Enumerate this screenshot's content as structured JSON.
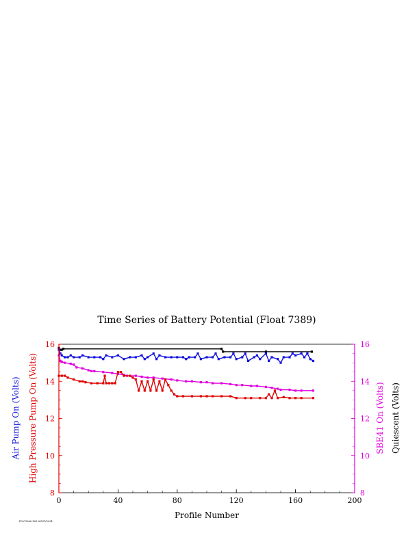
{
  "chart_data": {
    "type": "line",
    "title": "Time Series of Battery Potential (Float 7389)",
    "xlabel": "Profile Number",
    "xlim": [
      0,
      200
    ],
    "xticks": [
      0,
      40,
      80,
      120,
      160,
      200
    ],
    "ylim": [
      8,
      16
    ],
    "yticks": [
      8,
      10,
      12,
      14,
      16
    ],
    "left_axis_labels": [
      {
        "text": "Air Pump On (Volts)",
        "color": "#1010e0"
      },
      {
        "text": "High Pressure Pump On (Volts)",
        "color": "#e00000"
      }
    ],
    "right_axis_labels": [
      {
        "text": "SBE41 On (Volts)",
        "color": "#e000e0"
      },
      {
        "text": "Quiescent (Volts)",
        "color": "#000000"
      }
    ],
    "left_axis_color": "#e00000",
    "right_axis_color": "#e000e0",
    "footer_text": "F0073896.164 26NOV2024",
    "series": [
      {
        "name": "Quiescent",
        "color": "#000000",
        "x": [
          0,
          1,
          2,
          3,
          110,
          111,
          140,
          171
        ],
        "y": [
          15.8,
          15.7,
          15.7,
          15.75,
          15.75,
          15.6,
          15.6,
          15.6
        ]
      },
      {
        "name": "Air Pump On",
        "color": "#1010e0",
        "x": [
          0,
          1,
          2,
          4,
          6,
          8,
          10,
          14,
          16,
          20,
          24,
          28,
          30,
          32,
          36,
          40,
          44,
          48,
          52,
          56,
          58,
          60,
          64,
          66,
          68,
          72,
          76,
          80,
          84,
          86,
          88,
          92,
          94,
          96,
          100,
          104,
          106,
          108,
          112,
          116,
          118,
          120,
          124,
          126,
          128,
          132,
          134,
          136,
          140,
          142,
          144,
          148,
          150,
          152,
          156,
          158,
          160,
          164,
          166,
          168,
          170,
          172
        ],
        "y": [
          15.7,
          15.5,
          15.4,
          15.3,
          15.3,
          15.4,
          15.3,
          15.3,
          15.4,
          15.3,
          15.3,
          15.3,
          15.2,
          15.4,
          15.3,
          15.4,
          15.2,
          15.3,
          15.3,
          15.4,
          15.2,
          15.3,
          15.5,
          15.2,
          15.4,
          15.3,
          15.3,
          15.3,
          15.3,
          15.2,
          15.3,
          15.3,
          15.5,
          15.2,
          15.3,
          15.3,
          15.5,
          15.2,
          15.3,
          15.3,
          15.5,
          15.2,
          15.3,
          15.5,
          15.1,
          15.3,
          15.4,
          15.2,
          15.5,
          15.1,
          15.3,
          15.2,
          15.0,
          15.3,
          15.3,
          15.5,
          15.4,
          15.5,
          15.3,
          15.5,
          15.2,
          15.1
        ]
      },
      {
        "name": "SBE41 On",
        "color": "#e000e0",
        "x": [
          0,
          1,
          2,
          4,
          8,
          10,
          12,
          16,
          20,
          22,
          24,
          30,
          36,
          40,
          44,
          46,
          52,
          56,
          60,
          64,
          70,
          76,
          80,
          86,
          90,
          96,
          100,
          104,
          110,
          116,
          120,
          124,
          130,
          134,
          140,
          144,
          148,
          150,
          156,
          160,
          164,
          172
        ],
        "y": [
          15.4,
          15.1,
          15.05,
          15.0,
          14.95,
          14.9,
          14.75,
          14.7,
          14.6,
          14.55,
          14.55,
          14.5,
          14.45,
          14.4,
          14.35,
          14.3,
          14.3,
          14.25,
          14.2,
          14.2,
          14.15,
          14.1,
          14.05,
          14.0,
          14.0,
          13.95,
          13.95,
          13.9,
          13.9,
          13.85,
          13.8,
          13.8,
          13.75,
          13.75,
          13.7,
          13.65,
          13.6,
          13.55,
          13.55,
          13.5,
          13.5,
          13.5
        ]
      },
      {
        "name": "High Pressure Pump On",
        "color": "#e00000",
        "x": [
          0,
          2,
          4,
          6,
          10,
          14,
          16,
          18,
          22,
          26,
          30,
          31,
          32,
          34,
          36,
          38,
          40,
          42,
          44,
          48,
          50,
          52,
          54,
          56,
          58,
          60,
          62,
          64,
          66,
          68,
          70,
          72,
          74,
          76,
          78,
          80,
          84,
          90,
          96,
          100,
          104,
          110,
          116,
          120,
          126,
          130,
          136,
          140,
          142,
          144,
          146,
          148,
          152,
          156,
          160,
          164,
          172
        ],
        "y": [
          14.3,
          14.3,
          14.3,
          14.2,
          14.1,
          14.0,
          14.0,
          13.95,
          13.9,
          13.9,
          13.9,
          14.3,
          13.9,
          13.9,
          13.9,
          13.9,
          14.5,
          14.5,
          14.3,
          14.3,
          14.2,
          14.1,
          13.5,
          14.0,
          13.5,
          14.0,
          13.5,
          14.1,
          13.5,
          14.0,
          13.5,
          14.1,
          13.8,
          13.5,
          13.3,
          13.2,
          13.2,
          13.2,
          13.2,
          13.2,
          13.2,
          13.2,
          13.2,
          13.1,
          13.1,
          13.1,
          13.1,
          13.1,
          13.3,
          13.1,
          13.5,
          13.1,
          13.15,
          13.1,
          13.1,
          13.1,
          13.1
        ]
      }
    ]
  }
}
